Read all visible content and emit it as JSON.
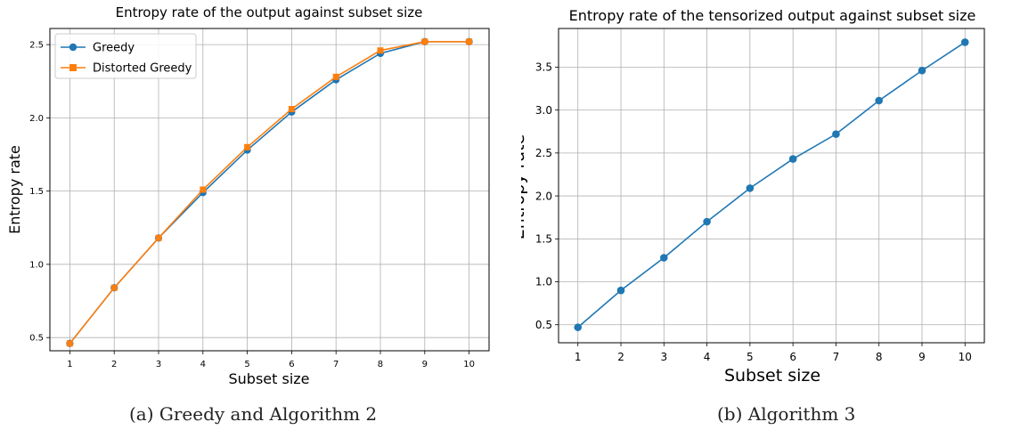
{
  "chart_data": [
    {
      "type": "line",
      "title": "Entropy rate of the output against subset size",
      "xlabel": "Subset size",
      "ylabel": "Entropy rate",
      "x": [
        1,
        2,
        3,
        4,
        5,
        6,
        7,
        8,
        9,
        10
      ],
      "xlim": [
        0.55,
        10.45
      ],
      "ylim": [
        0.41,
        2.61
      ],
      "yticks": [
        "0.5",
        "1.0",
        "1.5",
        "2.0",
        "2.5"
      ],
      "grid": true,
      "legend_position": "top-left",
      "series": [
        {
          "name": "Greedy",
          "color": "#1f77b4",
          "marker": "circle",
          "values": [
            0.46,
            0.84,
            1.18,
            1.49,
            1.78,
            2.04,
            2.26,
            2.44,
            2.52,
            2.52
          ]
        },
        {
          "name": "Distorted Greedy",
          "color": "#ff7f0e",
          "marker": "square",
          "values": [
            0.46,
            0.84,
            1.18,
            1.51,
            1.8,
            2.06,
            2.28,
            2.46,
            2.52,
            2.52
          ]
        }
      ]
    },
    {
      "type": "line",
      "title": "Entropy rate of the tensorized output against subset size",
      "xlabel": "Subset size",
      "ylabel": "Entropy rate",
      "x": [
        1,
        2,
        3,
        4,
        5,
        6,
        7,
        8,
        9,
        10
      ],
      "xlim": [
        0.55,
        10.45
      ],
      "ylim": [
        0.29,
        3.95
      ],
      "yticks": [
        "0.5",
        "1.0",
        "1.5",
        "2.0",
        "2.5",
        "3.0",
        "3.5"
      ],
      "grid": true,
      "series": [
        {
          "color": "#1f77b4",
          "marker": "circle",
          "values": [
            0.47,
            0.9,
            1.28,
            1.7,
            2.09,
            2.43,
            2.72,
            3.11,
            3.46,
            3.79
          ]
        }
      ]
    }
  ],
  "captions": {
    "left": "(a) Greedy and Algorithm 2",
    "right": "(b) Algorithm 3"
  }
}
